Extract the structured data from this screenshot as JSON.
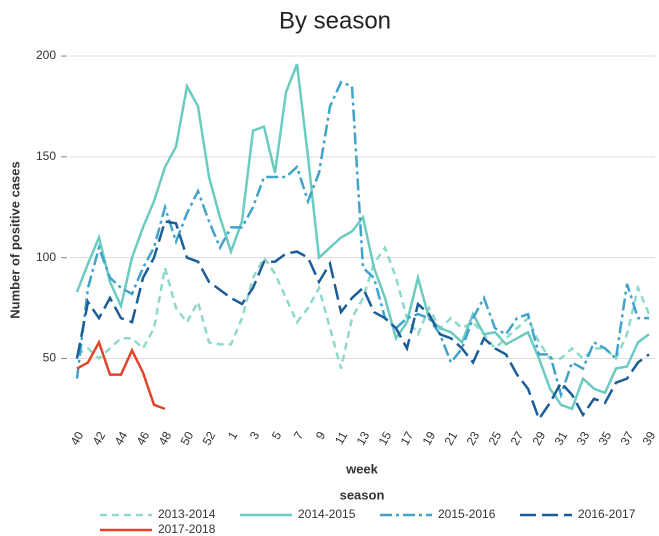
{
  "chart_data": {
    "type": "line",
    "title": "By season",
    "x_label": "week",
    "y_label": "Number of positive cases",
    "legend_title": "season",
    "categories": [
      40,
      null,
      42,
      null,
      44,
      null,
      46,
      null,
      48,
      null,
      50,
      null,
      52,
      null,
      1,
      null,
      3,
      null,
      5,
      null,
      7,
      null,
      9,
      null,
      11,
      null,
      13,
      null,
      15,
      null,
      17,
      null,
      19,
      null,
      21,
      null,
      23,
      null,
      25,
      null,
      27,
      null,
      29,
      null,
      31,
      null,
      33,
      null,
      35,
      null,
      37,
      null,
      39
    ],
    "ylim": [
      17,
      203
    ],
    "yticks": [
      50,
      100,
      150,
      200
    ],
    "grid": true,
    "legend": "bottom",
    "series": [
      {
        "name": "2013-2014",
        "color": "#8fd8cd",
        "style": "dashed",
        "values": [
          52,
          55,
          50,
          55,
          60,
          60,
          55,
          65,
          95,
          75,
          68,
          78,
          58,
          57,
          57,
          70,
          90,
          100,
          92,
          80,
          68,
          75,
          85,
          65,
          45,
          70,
          80,
          97,
          105,
          90,
          70,
          62,
          75,
          65,
          70,
          65,
          68,
          62,
          55,
          60,
          65,
          70,
          58,
          50,
          50,
          55,
          50,
          55,
          55,
          50,
          62,
          85,
          72
        ]
      },
      {
        "name": "2014-2015",
        "color": "#6ccbc0",
        "style": "solid",
        "values": [
          83,
          97,
          110,
          88,
          76,
          100,
          115,
          128,
          145,
          155,
          185,
          175,
          140,
          120,
          103,
          118,
          163,
          165,
          142,
          182,
          196,
          150,
          100,
          105,
          110,
          113,
          120,
          95,
          80,
          60,
          68,
          90,
          70,
          65,
          63,
          58,
          72,
          62,
          63,
          57,
          60,
          63,
          50,
          35,
          27,
          25,
          40,
          35,
          33,
          45,
          46,
          58,
          62
        ]
      },
      {
        "name": "2015-2016",
        "color": "#3fa3cc",
        "style": "dashdot",
        "values": [
          40,
          85,
          105,
          90,
          85,
          82,
          95,
          105,
          125,
          108,
          122,
          133,
          118,
          105,
          115,
          115,
          125,
          140,
          140,
          140,
          145,
          128,
          142,
          175,
          187,
          185,
          95,
          90,
          70,
          65,
          70,
          72,
          70,
          62,
          48,
          55,
          70,
          80,
          65,
          62,
          70,
          72,
          52,
          52,
          32,
          48,
          45,
          58,
          55,
          50,
          87,
          70,
          70
        ]
      },
      {
        "name": "2016-2017",
        "color": "#1c5d97",
        "style": "longdash",
        "values": [
          50,
          78,
          70,
          80,
          70,
          68,
          90,
          100,
          118,
          117,
          100,
          98,
          88,
          84,
          80,
          77,
          85,
          98,
          98,
          102,
          103,
          100,
          88,
          97,
          73,
          80,
          85,
          73,
          70,
          65,
          55,
          77,
          72,
          62,
          60,
          55,
          48,
          60,
          55,
          52,
          42,
          35,
          20,
          28,
          38,
          32,
          22,
          30,
          28,
          38,
          40,
          48,
          52
        ]
      },
      {
        "name": "2017-2018",
        "color": "#e0452b",
        "style": "solid",
        "values": [
          45,
          48,
          58,
          42,
          42,
          54,
          43,
          27,
          25,
          null,
          null,
          null,
          null,
          null,
          null,
          null,
          null,
          null,
          null,
          null,
          null,
          null,
          null,
          null,
          null,
          null,
          null,
          null,
          null,
          null,
          null,
          null,
          null,
          null,
          null,
          null,
          null,
          null,
          null,
          null,
          null,
          null,
          null,
          null,
          null,
          null,
          null,
          null,
          null,
          null,
          null,
          null,
          null
        ]
      }
    ]
  }
}
